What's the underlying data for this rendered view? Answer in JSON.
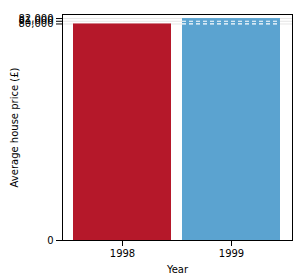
{
  "chart_data": {
    "type": "bar",
    "categories": [
      "1998",
      "1999"
    ],
    "values": [
      80000,
      82000
    ],
    "colors": [
      "#b5182a",
      "#5ba3d0"
    ],
    "xlabel": "Year",
    "ylabel": "Average house price (£)",
    "ylim": [
      0,
      83500
    ],
    "yticks": [
      0,
      {
        "value": 80000,
        "label": "80,000"
      },
      {
        "value": 81000,
        "label": "81,000"
      },
      {
        "value": 82000,
        "label": "82,000"
      }
    ],
    "grid": true
  }
}
